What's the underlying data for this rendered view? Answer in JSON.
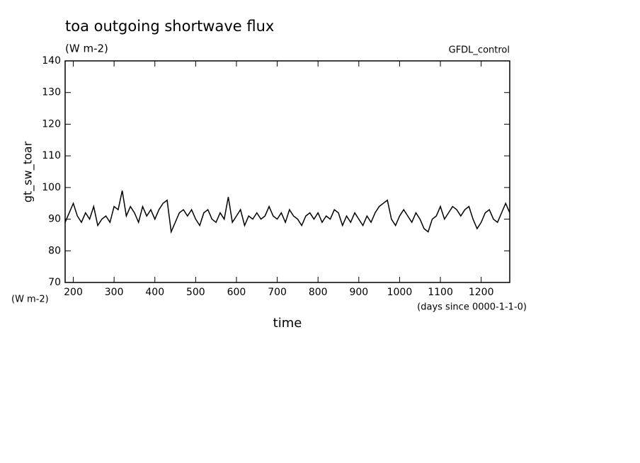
{
  "chart_data": {
    "type": "line",
    "title": "toa outgoing shortwave flux",
    "subtitle": "(W m-2)",
    "annotation": "GFDL_control",
    "y_label": "gt_sw_toar",
    "y_units": "(W m-2)",
    "x_label": "time",
    "x_units": "(days since 0000-1-1-0)",
    "x": [
      180,
      190,
      200,
      210,
      220,
      230,
      240,
      250,
      260,
      270,
      280,
      290,
      300,
      310,
      320,
      330,
      340,
      350,
      360,
      370,
      380,
      390,
      400,
      410,
      420,
      430,
      440,
      450,
      460,
      470,
      480,
      490,
      500,
      510,
      520,
      530,
      540,
      550,
      560,
      570,
      580,
      590,
      600,
      610,
      620,
      630,
      640,
      650,
      660,
      670,
      680,
      690,
      700,
      710,
      720,
      730,
      740,
      750,
      760,
      770,
      780,
      790,
      800,
      810,
      820,
      830,
      840,
      850,
      860,
      870,
      880,
      890,
      900,
      910,
      920,
      930,
      940,
      950,
      960,
      970,
      980,
      990,
      1000,
      1010,
      1020,
      1030,
      1040,
      1050,
      1060,
      1070,
      1080,
      1090,
      1100,
      1110,
      1120,
      1130,
      1140,
      1150,
      1160,
      1170,
      1180,
      1190,
      1200,
      1210,
      1220,
      1230,
      1240,
      1250,
      1260,
      1270
    ],
    "series": [
      {
        "color": "#000000",
        "values": [
          89,
          92,
          95,
          91,
          89,
          92,
          90,
          94,
          88,
          90,
          91,
          89,
          94,
          93,
          99,
          91,
          94,
          92,
          89,
          94,
          91,
          93,
          90,
          93,
          95,
          96,
          86,
          89,
          92,
          93,
          91,
          93,
          90,
          88,
          92,
          93,
          90,
          89,
          92,
          90,
          97,
          89,
          91,
          93,
          88,
          91,
          90,
          92,
          90,
          91,
          94,
          91,
          90,
          92,
          89,
          93,
          91,
          90,
          88,
          91,
          92,
          90,
          92,
          89,
          91,
          90,
          93,
          92,
          88,
          91,
          89,
          92,
          90,
          88,
          91,
          89,
          92,
          94,
          95,
          96,
          90,
          88,
          91,
          93,
          91,
          89,
          92,
          90,
          87,
          86,
          90,
          91,
          94,
          90,
          92,
          94,
          93,
          91,
          93,
          94,
          90,
          87,
          89,
          92,
          93,
          90,
          89,
          92,
          95,
          92
        ]
      }
    ],
    "xlim": [
      180,
      1270
    ],
    "ylim": [
      70,
      140
    ],
    "xticks": [
      200,
      300,
      400,
      500,
      600,
      700,
      800,
      900,
      1000,
      1100,
      1200
    ],
    "yticks": [
      70,
      80,
      90,
      100,
      110,
      120,
      130,
      140
    ]
  }
}
